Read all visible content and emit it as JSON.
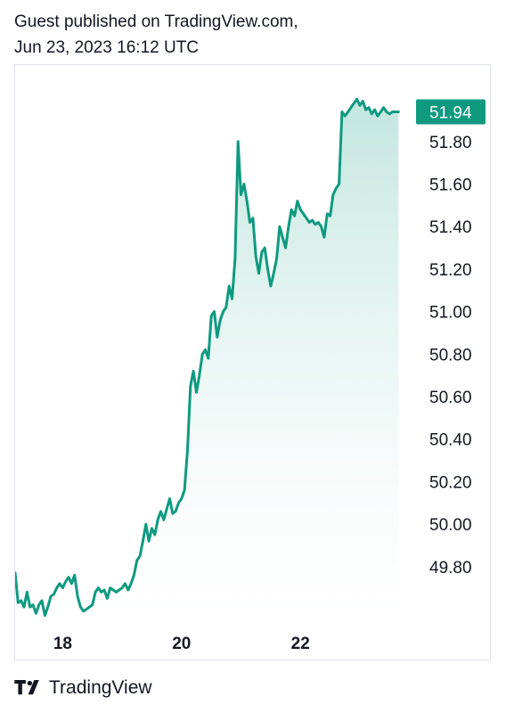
{
  "header": {
    "line1": "Guest published on TradingView.com,",
    "line2": "Jun 23, 2023 16:12 UTC"
  },
  "footer": {
    "brand": "TradingView",
    "logo_icon": "tradingview-logo-icon"
  },
  "colors": {
    "line": "#0f9a80",
    "fill_top": "#bfe5dc",
    "fill_bottom": "#ffffff",
    "badge": "#0f9a80",
    "axis_text": "#131722"
  },
  "chart_data": {
    "type": "area",
    "x_tick_labels": [
      "18",
      "20",
      "22"
    ],
    "y_tick_labels": [
      "49.80",
      "50.00",
      "50.20",
      "50.40",
      "50.60",
      "50.80",
      "51.00",
      "51.20",
      "51.40",
      "51.60",
      "51.80"
    ],
    "last_value_label": "51.94",
    "ylim": [
      49.56,
      52.16
    ],
    "xlim": [
      17.2,
      23.9
    ],
    "grid": false,
    "series": [
      {
        "x": [
          17.2,
          17.25,
          17.3,
          17.35,
          17.4,
          17.45,
          17.5,
          17.55,
          17.6,
          17.65,
          17.7,
          17.75,
          17.8,
          17.85,
          17.9,
          17.95,
          18.0,
          18.05,
          18.1,
          18.15,
          18.2,
          18.25,
          18.3,
          18.35,
          18.4,
          18.5,
          18.55,
          18.6,
          18.65,
          18.7,
          18.75,
          18.8,
          18.85,
          18.9,
          19.0,
          19.05,
          19.1,
          19.15,
          19.2,
          19.25,
          19.3,
          19.35,
          19.4,
          19.45,
          19.5,
          19.55,
          19.6,
          19.65,
          19.7,
          19.75,
          19.8,
          19.85,
          19.9,
          19.95,
          20.0,
          20.05,
          20.1,
          20.15,
          20.2,
          20.25,
          20.3,
          20.35,
          20.4,
          20.45,
          20.5,
          20.55,
          20.6,
          20.65,
          20.7,
          20.75,
          20.8,
          20.85,
          20.9,
          20.95,
          21.0,
          21.05,
          21.1,
          21.15,
          21.2,
          21.25,
          21.3,
          21.35,
          21.4,
          21.45,
          21.5,
          21.55,
          21.6,
          21.65,
          21.7,
          21.75,
          21.8,
          21.85,
          21.9,
          21.95,
          22.0,
          22.05,
          22.1,
          22.15,
          22.2,
          22.25,
          22.3,
          22.35,
          22.4,
          22.45,
          22.5,
          22.55,
          22.6,
          22.65,
          22.7,
          22.75,
          22.8,
          22.85,
          22.9,
          22.95,
          23.0,
          23.05,
          23.1,
          23.15,
          23.2,
          23.25,
          23.3,
          23.35,
          23.4,
          23.45,
          23.5,
          23.55,
          23.6,
          23.65
        ],
        "y": [
          49.77,
          49.63,
          49.64,
          49.61,
          49.68,
          49.61,
          49.62,
          49.58,
          49.62,
          49.64,
          49.57,
          49.61,
          49.66,
          49.67,
          49.7,
          49.72,
          49.7,
          49.73,
          49.75,
          49.72,
          49.76,
          49.66,
          49.61,
          49.59,
          49.6,
          49.62,
          49.68,
          49.7,
          49.68,
          49.69,
          49.65,
          49.7,
          49.69,
          49.68,
          49.7,
          49.72,
          49.69,
          49.72,
          49.76,
          49.83,
          49.85,
          49.92,
          50.0,
          49.92,
          49.98,
          49.95,
          50.02,
          50.06,
          50.02,
          50.07,
          50.12,
          50.05,
          50.06,
          50.1,
          50.12,
          50.16,
          50.35,
          50.65,
          50.72,
          50.62,
          50.7,
          50.8,
          50.82,
          50.78,
          50.98,
          51.0,
          50.88,
          50.96,
          51.0,
          51.02,
          51.12,
          51.06,
          51.25,
          51.8,
          51.55,
          51.6,
          51.52,
          51.42,
          51.44,
          51.26,
          51.18,
          51.28,
          51.3,
          51.2,
          51.12,
          51.18,
          51.25,
          51.4,
          51.35,
          51.3,
          51.4,
          51.48,
          51.45,
          51.52,
          51.48,
          51.46,
          51.44,
          51.42,
          51.43,
          51.41,
          51.42,
          51.4,
          51.35,
          51.46,
          51.45,
          51.55,
          51.58,
          51.6,
          51.94,
          51.92,
          51.94,
          51.96,
          51.98,
          52.0,
          51.97,
          51.99,
          51.95,
          51.96,
          51.93,
          51.95,
          51.92,
          51.94,
          51.96,
          51.94,
          51.93,
          51.94,
          51.94,
          51.94
        ]
      }
    ]
  }
}
